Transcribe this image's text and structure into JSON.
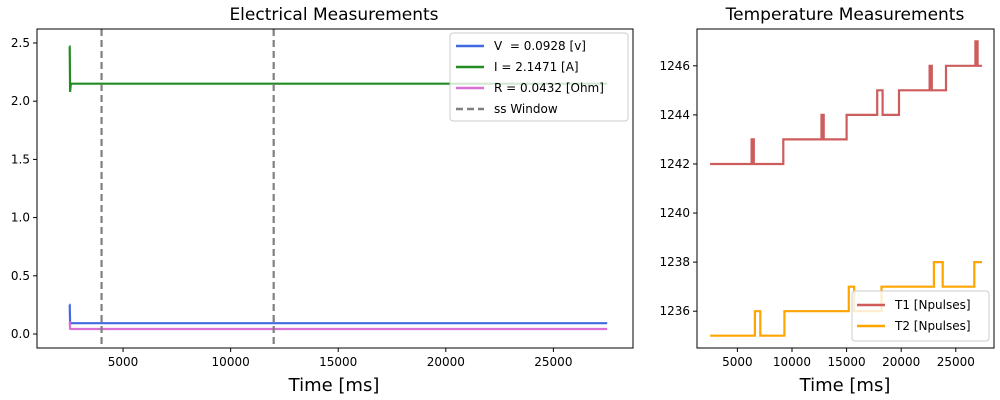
{
  "chart_data": [
    {
      "type": "line",
      "title": "Electrical Measurements",
      "xlabel": "Time [ms]",
      "ylabel": "",
      "xlim": [
        1000,
        28700
      ],
      "ylim": [
        -0.12,
        2.62
      ],
      "xticks": [
        5000,
        10000,
        15000,
        20000,
        25000
      ],
      "yticks": [
        0.0,
        0.5,
        1.0,
        1.5,
        2.0,
        2.5
      ],
      "ytick_format": 1,
      "legend_position": "top-right",
      "grid": false,
      "vlines": [
        {
          "x": 4000,
          "color": "#808080"
        },
        {
          "x": 12000,
          "color": "#808080"
        }
      ],
      "series": [
        {
          "name": "V  = 0.0928 [v]",
          "color": "#4169e1",
          "x": [
            2500,
            2520,
            2540,
            2560,
            2600,
            3000,
            6600,
            6610,
            6620,
            27500
          ],
          "y": [
            0.25,
            0.25,
            0.1,
            0.09,
            0.093,
            0.093,
            0.093,
            0.1,
            0.093,
            0.093
          ]
        },
        {
          "name": "I = 2.1471 [A]",
          "color": "#228b22",
          "x": [
            2500,
            2520,
            2540,
            2560,
            2580,
            2600,
            3000,
            27500
          ],
          "y": [
            2.47,
            2.47,
            2.08,
            2.13,
            2.15,
            2.15,
            2.15,
            2.15
          ]
        },
        {
          "name": "R = 0.0432 [Ohm]",
          "color": "#da70d6",
          "x": [
            2500,
            2520,
            2540,
            2600,
            27500
          ],
          "y": [
            0.1,
            0.1,
            0.045,
            0.043,
            0.043
          ]
        },
        {
          "name": "ss Window",
          "color": "#808080",
          "dashed": true,
          "x": [],
          "y": []
        }
      ]
    },
    {
      "type": "line",
      "title": "Temperature Measurements",
      "xlabel": "Time [ms]",
      "ylabel": "",
      "xlim": [
        1300,
        28500
      ],
      "ylim": [
        1234.5,
        1247.5
      ],
      "xticks": [
        5000,
        10000,
        15000,
        20000,
        25000
      ],
      "yticks": [
        1236,
        1238,
        1240,
        1242,
        1244,
        1246
      ],
      "ytick_format": 0,
      "legend_position": "bottom-right",
      "grid": false,
      "series": [
        {
          "name": "T1 [Npulses]",
          "color": "#cd5c5c",
          "x": [
            2500,
            6300,
            6300,
            6500,
            6500,
            9200,
            9200,
            12700,
            12700,
            12900,
            12900,
            15000,
            15000,
            17800,
            17800,
            18300,
            18300,
            19800,
            19800,
            22600,
            22600,
            22800,
            22800,
            24100,
            24100,
            26800,
            26800,
            27000,
            27000,
            27400
          ],
          "y": [
            1242,
            1242,
            1243,
            1243,
            1242,
            1242,
            1243,
            1243,
            1244,
            1244,
            1243,
            1243,
            1244,
            1244,
            1245,
            1245,
            1244,
            1244,
            1245,
            1245,
            1246,
            1246,
            1245,
            1245,
            1246,
            1246,
            1247,
            1247,
            1246,
            1246
          ]
        },
        {
          "name": "T2 [Npulses]",
          "color": "#ffa500",
          "x": [
            2500,
            6600,
            6600,
            7100,
            7100,
            9300,
            9300,
            15200,
            15200,
            15700,
            15700,
            18200,
            18200,
            23000,
            23000,
            23800,
            23800,
            26700,
            26700,
            27400
          ],
          "y": [
            1235,
            1235,
            1236,
            1236,
            1235,
            1235,
            1236,
            1236,
            1237,
            1237,
            1236,
            1236,
            1237,
            1237,
            1238,
            1238,
            1237,
            1237,
            1238,
            1238
          ]
        }
      ]
    }
  ]
}
